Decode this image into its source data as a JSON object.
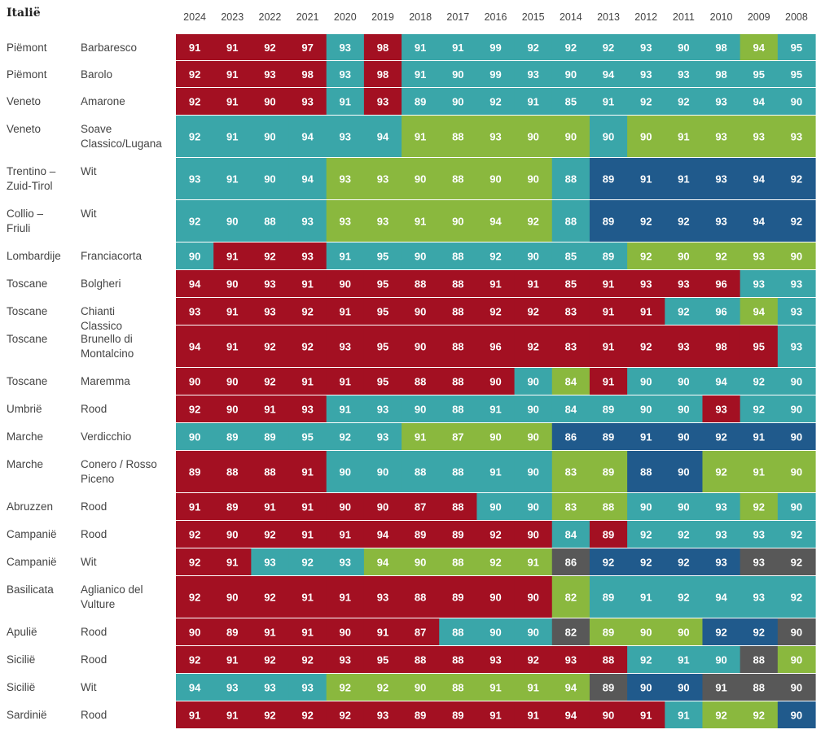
{
  "title": "Italië",
  "colors": {
    "red": "#a31022",
    "teal": "#3aa6a9",
    "green": "#8ab83e",
    "blue": "#205a8c",
    "gray": "#585858"
  },
  "chart_data": {
    "type": "heatmap",
    "title": "Italië",
    "years": [
      "2024",
      "2023",
      "2022",
      "2021",
      "2020",
      "2019",
      "2018",
      "2017",
      "2016",
      "2015",
      "2014",
      "2013",
      "2012",
      "2011",
      "2010",
      "2009",
      "2008"
    ],
    "rows": [
      {
        "region": "Piëmont",
        "name": "Barbaresco",
        "values": [
          91,
          91,
          92,
          97,
          93,
          98,
          91,
          91,
          99,
          92,
          92,
          92,
          93,
          90,
          98,
          94,
          95
        ],
        "colors": [
          "red",
          "red",
          "red",
          "red",
          "teal",
          "red",
          "teal",
          "teal",
          "teal",
          "teal",
          "teal",
          "teal",
          "teal",
          "teal",
          "teal",
          "green",
          "teal"
        ]
      },
      {
        "region": "Piëmont",
        "name": "Barolo",
        "values": [
          92,
          91,
          93,
          98,
          93,
          98,
          91,
          90,
          99,
          93,
          90,
          94,
          93,
          93,
          98,
          95,
          95
        ],
        "colors": [
          "red",
          "red",
          "red",
          "red",
          "teal",
          "red",
          "teal",
          "teal",
          "teal",
          "teal",
          "teal",
          "teal",
          "teal",
          "teal",
          "teal",
          "teal",
          "teal"
        ]
      },
      {
        "region": "Veneto",
        "name": "Amarone",
        "values": [
          92,
          91,
          90,
          93,
          91,
          93,
          89,
          90,
          92,
          91,
          85,
          91,
          92,
          92,
          93,
          94,
          90
        ],
        "colors": [
          "red",
          "red",
          "red",
          "red",
          "teal",
          "red",
          "teal",
          "teal",
          "teal",
          "teal",
          "teal",
          "teal",
          "teal",
          "teal",
          "teal",
          "teal",
          "teal"
        ]
      },
      {
        "region": "Veneto",
        "name": "Soave Classico/Lugana",
        "values": [
          92,
          91,
          90,
          94,
          93,
          94,
          91,
          88,
          93,
          90,
          90,
          90,
          90,
          91,
          93,
          93,
          93
        ],
        "colors": [
          "teal",
          "teal",
          "teal",
          "teal",
          "teal",
          "teal",
          "green",
          "green",
          "green",
          "green",
          "green",
          "teal",
          "green",
          "green",
          "green",
          "green",
          "green"
        ]
      },
      {
        "region": "Trentino – Zuid-Tirol",
        "name": "Wit",
        "values": [
          93,
          91,
          90,
          94,
          93,
          93,
          90,
          88,
          90,
          90,
          88,
          89,
          91,
          91,
          93,
          94,
          92
        ],
        "colors": [
          "teal",
          "teal",
          "teal",
          "teal",
          "green",
          "green",
          "green",
          "green",
          "green",
          "green",
          "teal",
          "blue",
          "blue",
          "blue",
          "blue",
          "blue",
          "blue"
        ]
      },
      {
        "region": "Collio – Friuli",
        "name": "Wit",
        "values": [
          92,
          90,
          88,
          93,
          93,
          93,
          91,
          90,
          94,
          92,
          88,
          89,
          92,
          92,
          93,
          94,
          92
        ],
        "colors": [
          "teal",
          "teal",
          "teal",
          "teal",
          "green",
          "green",
          "green",
          "green",
          "green",
          "green",
          "teal",
          "blue",
          "blue",
          "blue",
          "blue",
          "blue",
          "blue"
        ]
      },
      {
        "region": "Lombardije",
        "name": "Franciacorta",
        "values": [
          90,
          91,
          92,
          93,
          91,
          95,
          90,
          88,
          92,
          90,
          85,
          89,
          92,
          90,
          92,
          93,
          90
        ],
        "colors": [
          "teal",
          "red",
          "red",
          "red",
          "teal",
          "teal",
          "teal",
          "teal",
          "teal",
          "teal",
          "teal",
          "teal",
          "green",
          "green",
          "green",
          "green",
          "green"
        ]
      },
      {
        "region": "Toscane",
        "name": "Bolgheri",
        "values": [
          94,
          90,
          93,
          91,
          90,
          95,
          88,
          88,
          91,
          91,
          85,
          91,
          93,
          93,
          96,
          93,
          93
        ],
        "colors": [
          "red",
          "red",
          "red",
          "red",
          "red",
          "red",
          "red",
          "red",
          "red",
          "red",
          "red",
          "red",
          "red",
          "red",
          "red",
          "teal",
          "teal"
        ]
      },
      {
        "region": "Toscane",
        "name": "Chianti Classico",
        "values": [
          93,
          91,
          93,
          92,
          91,
          95,
          90,
          88,
          92,
          92,
          83,
          91,
          91,
          92,
          96,
          94,
          93
        ],
        "colors": [
          "red",
          "red",
          "red",
          "red",
          "red",
          "red",
          "red",
          "red",
          "red",
          "red",
          "red",
          "red",
          "red",
          "teal",
          "teal",
          "green",
          "teal"
        ]
      },
      {
        "region": "Toscane",
        "name": "Brunello di Montalcino",
        "values": [
          94,
          91,
          92,
          92,
          93,
          95,
          90,
          88,
          96,
          92,
          83,
          91,
          92,
          93,
          98,
          95,
          93
        ],
        "colors": [
          "red",
          "red",
          "red",
          "red",
          "red",
          "red",
          "red",
          "red",
          "red",
          "red",
          "red",
          "red",
          "red",
          "red",
          "red",
          "red",
          "teal"
        ]
      },
      {
        "region": "Toscane",
        "name": "Maremma",
        "values": [
          90,
          90,
          92,
          91,
          91,
          95,
          88,
          88,
          90,
          90,
          84,
          91,
          90,
          90,
          94,
          92,
          90
        ],
        "colors": [
          "red",
          "red",
          "red",
          "red",
          "red",
          "red",
          "red",
          "red",
          "red",
          "teal",
          "green",
          "red",
          "teal",
          "teal",
          "teal",
          "teal",
          "teal"
        ]
      },
      {
        "region": "Umbrië",
        "name": "Rood",
        "values": [
          92,
          90,
          91,
          93,
          91,
          93,
          90,
          88,
          91,
          90,
          84,
          89,
          90,
          90,
          93,
          92,
          90
        ],
        "colors": [
          "red",
          "red",
          "red",
          "red",
          "teal",
          "teal",
          "teal",
          "teal",
          "teal",
          "teal",
          "teal",
          "teal",
          "teal",
          "teal",
          "red",
          "teal",
          "teal"
        ]
      },
      {
        "region": "Marche",
        "name": "Verdicchio",
        "values": [
          90,
          89,
          89,
          95,
          92,
          93,
          91,
          87,
          90,
          90,
          86,
          89,
          91,
          90,
          92,
          91,
          90
        ],
        "colors": [
          "teal",
          "teal",
          "teal",
          "teal",
          "teal",
          "teal",
          "green",
          "green",
          "green",
          "green",
          "blue",
          "blue",
          "blue",
          "blue",
          "blue",
          "blue",
          "blue"
        ]
      },
      {
        "region": "Marche",
        "name": "Conero / Rosso Piceno",
        "values": [
          89,
          88,
          88,
          91,
          90,
          90,
          88,
          88,
          91,
          90,
          83,
          89,
          88,
          90,
          92,
          91,
          90
        ],
        "colors": [
          "red",
          "red",
          "red",
          "red",
          "teal",
          "teal",
          "teal",
          "teal",
          "teal",
          "teal",
          "green",
          "green",
          "blue",
          "blue",
          "green",
          "green",
          "green"
        ]
      },
      {
        "region": "Abruzzen",
        "name": "Rood",
        "values": [
          91,
          89,
          91,
          91,
          90,
          90,
          87,
          88,
          90,
          90,
          83,
          88,
          90,
          90,
          93,
          92,
          90
        ],
        "colors": [
          "red",
          "red",
          "red",
          "red",
          "red",
          "red",
          "red",
          "red",
          "teal",
          "teal",
          "green",
          "green",
          "teal",
          "teal",
          "teal",
          "green",
          "teal"
        ]
      },
      {
        "region": "Campanië",
        "name": "Rood",
        "values": [
          92,
          90,
          92,
          91,
          91,
          94,
          89,
          89,
          92,
          90,
          84,
          89,
          92,
          92,
          93,
          93,
          92
        ],
        "colors": [
          "red",
          "red",
          "red",
          "red",
          "red",
          "red",
          "red",
          "red",
          "red",
          "red",
          "teal",
          "red",
          "teal",
          "teal",
          "teal",
          "teal",
          "teal"
        ]
      },
      {
        "region": "Campanië",
        "name": "Wit",
        "values": [
          92,
          91,
          93,
          92,
          93,
          94,
          90,
          88,
          92,
          91,
          86,
          92,
          92,
          92,
          93,
          93,
          92
        ],
        "colors": [
          "red",
          "red",
          "teal",
          "teal",
          "teal",
          "green",
          "green",
          "green",
          "green",
          "green",
          "gray",
          "blue",
          "blue",
          "blue",
          "blue",
          "gray",
          "gray"
        ]
      },
      {
        "region": "Basilicata",
        "name": "Aglianico del Vulture",
        "values": [
          92,
          90,
          92,
          91,
          91,
          93,
          88,
          89,
          90,
          90,
          82,
          89,
          91,
          92,
          94,
          93,
          92
        ],
        "colors": [
          "red",
          "red",
          "red",
          "red",
          "red",
          "red",
          "red",
          "red",
          "red",
          "red",
          "green",
          "teal",
          "teal",
          "teal",
          "teal",
          "teal",
          "teal"
        ]
      },
      {
        "region": "Apulië",
        "name": "Rood",
        "values": [
          90,
          89,
          91,
          91,
          90,
          91,
          87,
          88,
          90,
          90,
          82,
          89,
          90,
          90,
          92,
          92,
          90
        ],
        "colors": [
          "red",
          "red",
          "red",
          "red",
          "red",
          "red",
          "red",
          "teal",
          "teal",
          "teal",
          "gray",
          "green",
          "green",
          "green",
          "blue",
          "blue",
          "gray"
        ]
      },
      {
        "region": "Sicilië",
        "name": "Rood",
        "values": [
          92,
          91,
          92,
          92,
          93,
          95,
          88,
          88,
          93,
          92,
          93,
          88,
          92,
          91,
          90,
          88,
          90
        ],
        "colors": [
          "red",
          "red",
          "red",
          "red",
          "red",
          "red",
          "red",
          "red",
          "red",
          "red",
          "red",
          "red",
          "teal",
          "teal",
          "teal",
          "gray",
          "green"
        ]
      },
      {
        "region": "Sicilië",
        "name": "Wit",
        "values": [
          94,
          93,
          93,
          93,
          92,
          92,
          90,
          88,
          91,
          91,
          94,
          89,
          90,
          90,
          91,
          88,
          90
        ],
        "colors": [
          "teal",
          "teal",
          "teal",
          "teal",
          "green",
          "green",
          "green",
          "green",
          "green",
          "green",
          "green",
          "gray",
          "blue",
          "blue",
          "gray",
          "gray",
          "gray"
        ]
      },
      {
        "region": "Sardinië",
        "name": "Rood",
        "values": [
          91,
          91,
          92,
          92,
          92,
          93,
          89,
          89,
          91,
          91,
          94,
          90,
          91,
          91,
          92,
          92,
          90
        ],
        "colors": [
          "red",
          "red",
          "red",
          "red",
          "red",
          "red",
          "red",
          "red",
          "red",
          "red",
          "red",
          "red",
          "red",
          "teal",
          "green",
          "green",
          "blue"
        ]
      }
    ]
  }
}
